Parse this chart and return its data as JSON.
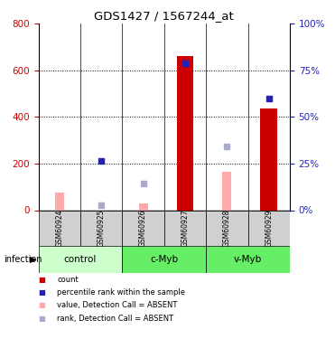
{
  "title": "GDS1427 / 1567244_at",
  "samples": [
    "GSM60924",
    "GSM60925",
    "GSM60926",
    "GSM60927",
    "GSM60928",
    "GSM60929"
  ],
  "red_bars": [
    null,
    null,
    null,
    660,
    null,
    435
  ],
  "blue_dots": [
    null,
    210,
    null,
    630,
    null,
    480
  ],
  "pink_bars": [
    75,
    null,
    30,
    null,
    165,
    null
  ],
  "lavender_dots": [
    null,
    20,
    115,
    null,
    275,
    null
  ],
  "left_ylim": [
    0,
    800
  ],
  "right_ylim": [
    0,
    100
  ],
  "left_yticks": [
    0,
    200,
    400,
    600,
    800
  ],
  "right_yticks": [
    0,
    25,
    50,
    75,
    100
  ],
  "right_yticklabels": [
    "0%",
    "25%",
    "50%",
    "75%",
    "100%"
  ],
  "gridlines": [
    200,
    400,
    600
  ],
  "red_color": "#cc0000",
  "pink_color": "#ffaaaa",
  "blue_color": "#2222bb",
  "lavender_color": "#aaaacc",
  "tick_color_left": "#cc0000",
  "tick_color_right": "#2222bb",
  "group_defs": [
    {
      "start": 0,
      "end": 1,
      "name": "control",
      "color": "#ccffcc"
    },
    {
      "start": 2,
      "end": 3,
      "name": "c-Myb",
      "color": "#66ee66"
    },
    {
      "start": 4,
      "end": 5,
      "name": "v-Myb",
      "color": "#66ee66"
    }
  ],
  "sample_bg": "#d0d0d0",
  "legend_items": [
    {
      "color": "#cc0000",
      "label": "count"
    },
    {
      "color": "#2222bb",
      "label": "percentile rank within the sample"
    },
    {
      "color": "#ffaaaa",
      "label": "value, Detection Call = ABSENT"
    },
    {
      "color": "#aaaacc",
      "label": "rank, Detection Call = ABSENT"
    }
  ]
}
